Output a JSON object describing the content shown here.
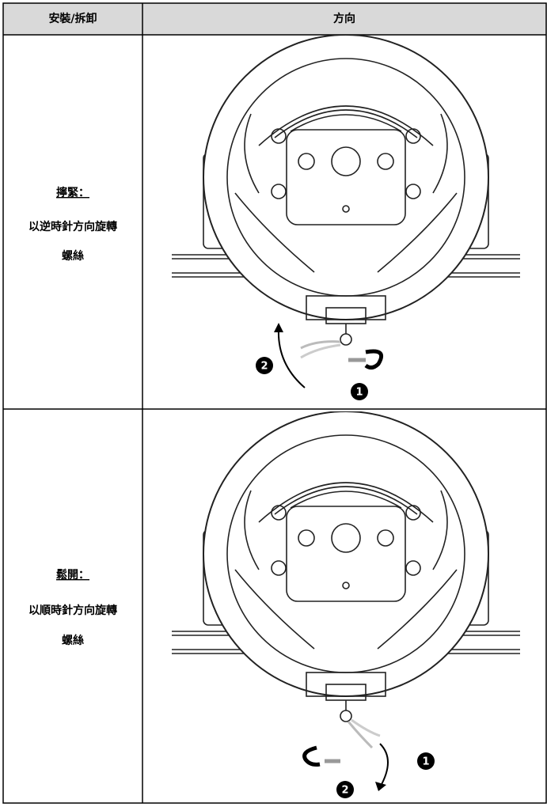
{
  "table": {
    "header": [
      "安裝/拆卸",
      "方向"
    ],
    "rows": [
      {
        "action": "擰緊：",
        "lines": [
          "以逆時針方向旋轉",
          "螺絲"
        ],
        "steps": [
          "1",
          "2"
        ]
      },
      {
        "action": "鬆開：",
        "lines": [
          "以順時針方向旋轉",
          "螺絲"
        ],
        "steps": [
          "1",
          "2"
        ]
      }
    ]
  }
}
